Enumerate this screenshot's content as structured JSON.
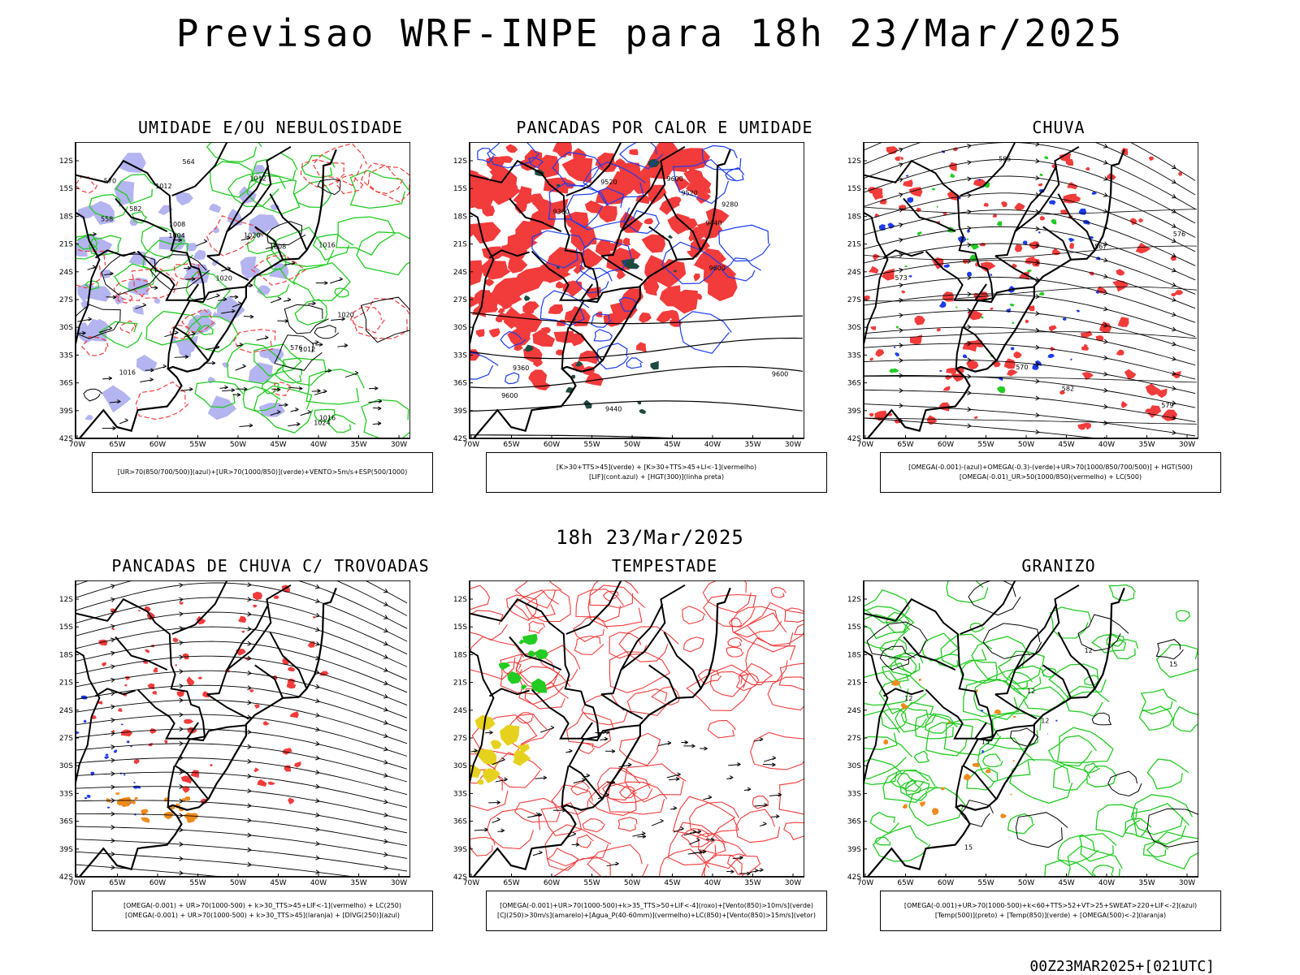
{
  "title": "Previsao WRF-INPE  para 18h 23/Mar/2025",
  "mid_time": "18h 23/Mar/2025",
  "footer": "00Z23MAR2025+[021UTC]",
  "lat_labels": [
    "12S",
    "15S",
    "18S",
    "21S",
    "24S",
    "27S",
    "30S",
    "33S",
    "36S",
    "39S",
    "42S"
  ],
  "lon_labels": [
    "70W",
    "65W",
    "60W",
    "55W",
    "50W",
    "45W",
    "40W",
    "35W",
    "30W"
  ],
  "colors": {
    "red": "#f23b3b",
    "green": "#22cc22",
    "blue": "#1c3cf0",
    "lavender": "#b4b4f0",
    "orange": "#f08a1c",
    "yellow": "#e6d21e",
    "darkgreen": "#1e4a40",
    "purple": "#aa33aa"
  },
  "panels": [
    {
      "title": "UMIDADE E/OU NEBULOSIDADE",
      "legend": [
        "[UR>70(850/700/500)](azul)+[UR>70(1000/850)](verde)+VENTO>5m/s+ESP(500/1000)"
      ],
      "labels": [
        "1008",
        "1012",
        "1012",
        "1016",
        "1004",
        "1012",
        "1008",
        "1016",
        "1020",
        "1020",
        "1024",
        "1016",
        "1020",
        "576",
        "570",
        "564",
        "558",
        "582"
      ]
    },
    {
      "title": "PANCADAS POR CALOR E UMIDADE",
      "legend": [
        "[K>30+TTS>45](verde) + [K>30+TTS>45+LI<-1](vermelho)",
        "[LIF](cont.azul) + [HGT(300)](linha preta)"
      ],
      "labels": [
        "9600",
        "9600",
        "9600",
        "9600",
        "9520",
        "9520",
        "9440",
        "9440",
        "9360",
        "9360",
        "9280"
      ]
    },
    {
      "title": "CHUVA",
      "legend": [
        "[OMEGA(-0.001)-(azul)+OMEGA(-0.3)-(verde)+UR>70(1000/850/700/500)] + HGT(500)",
        "[OMEGA(-0.01)_UR>50(1000/850)(vermelho) + LC(500)"
      ],
      "labels": [
        "585",
        "582",
        "579",
        "576",
        "573",
        "570",
        "567"
      ]
    },
    {
      "title": "PANCADAS DE CHUVA C/ TROVOADAS",
      "legend": [
        "[OMEGA(-0.001) + UR>70(1000-500) + k>30_TTS>45+LIF<-1](vermelho) + LC(250)",
        "[OMEGA(-0.001) + UR>70(1000-500) + k>30_TTS>45](laranja) + [DIVG(250)](azul)"
      ],
      "labels": []
    },
    {
      "title": "TEMPESTADE",
      "legend": [
        "[OMEGA(-0.001)+UR>70(1000-500)+k>35_TTS>50+LIF<-4](roxo)+[Vento(850)>10m/s](verde)",
        "[CJ(250)>30m/s](amarelo)+[Agua_P(40-60mm)](vermelho)+LC(850)+[Vento(850)>15m/s](vetor)"
      ],
      "labels": []
    },
    {
      "title": "GRANIZO",
      "legend": [
        "[OMEGA(-0.001)+UR>70(1000-500)+k<60+TTS>52+VT>25+SWEAT>220+LIF<-2](azul)",
        "[Temp(500)](preto) + [Temp(850)](verde) + [OMEGA(500)<-2](laranja)"
      ],
      "labels": [
        "12",
        "12",
        "12",
        "12",
        "15",
        "15",
        "15"
      ]
    }
  ]
}
